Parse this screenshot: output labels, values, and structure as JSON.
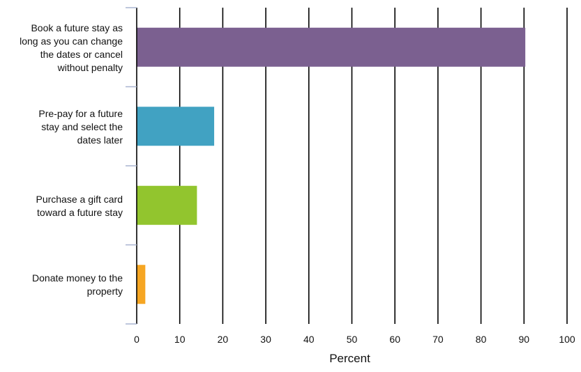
{
  "chart_data": {
    "type": "bar",
    "orientation": "horizontal",
    "categories": [
      [
        "Book a future stay as",
        "long as you can change",
        "the dates or cancel",
        "without penalty"
      ],
      [
        "Pre-pay for a future",
        "stay and select the",
        "dates later"
      ],
      [
        "Purchase a gift card",
        "toward a future stay"
      ],
      [
        "Donate money to the",
        "property"
      ]
    ],
    "values": [
      90.3,
      18,
      14,
      2
    ],
    "colors": [
      "#7b6090",
      "#41a2c2",
      "#92c52e",
      "#f6a623"
    ],
    "xlabel": "Percent",
    "ylabel": "",
    "title": "",
    "xlim": [
      0,
      100
    ],
    "xticks": [
      "0",
      "10",
      "20",
      "30",
      "40",
      "50",
      "60",
      "70",
      "80",
      "90",
      "100"
    ],
    "grid": "vertical"
  }
}
